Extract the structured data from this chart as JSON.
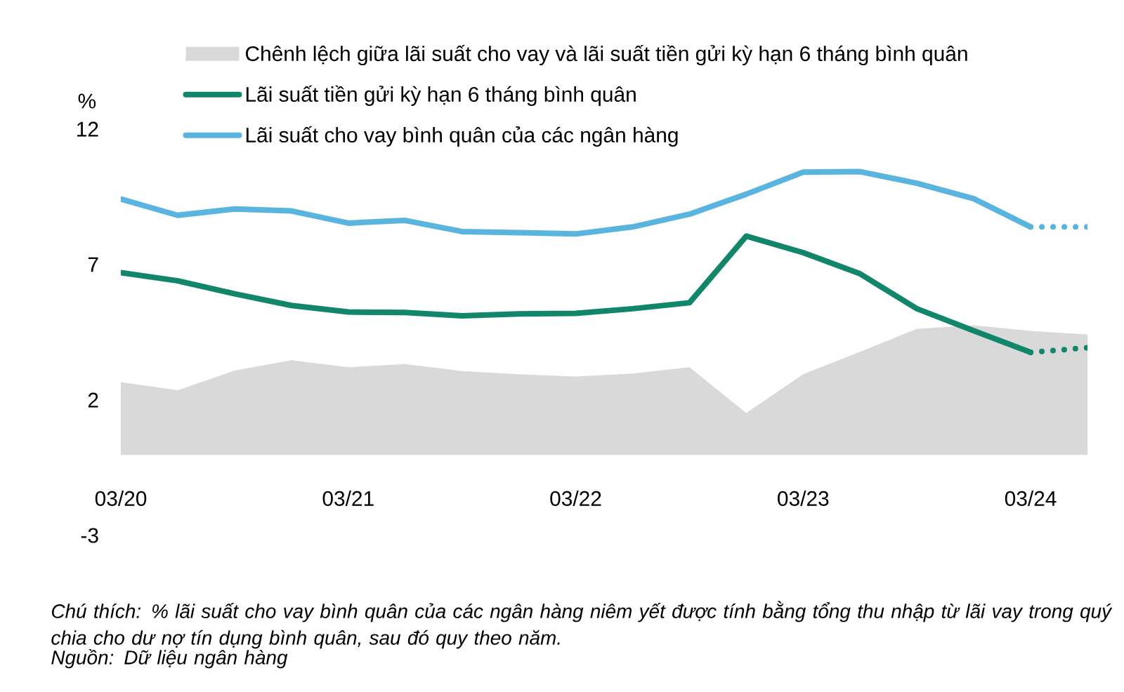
{
  "chart_data": {
    "type": "line",
    "ylabel": "%",
    "x": [
      "2020-03",
      "2020-06",
      "2020-09",
      "2020-12",
      "2021-03",
      "2021-06",
      "2021-09",
      "2021-12",
      "2022-03",
      "2022-06",
      "2022-09",
      "2022-12",
      "2023-03",
      "2023-06",
      "2023-09",
      "2023-12",
      "2024-03",
      "2024-06"
    ],
    "series": [
      {
        "name": "Chênh lệch giữa lãi suất cho vay và lãi suất tiền gửi kỳ hạn 6 tháng bình quân",
        "type": "area",
        "color": "#d9d9d9",
        "values": [
          2.66,
          2.36,
          3.09,
          3.47,
          3.21,
          3.33,
          3.07,
          2.95,
          2.87,
          2.98,
          3.21,
          1.52,
          2.95,
          3.78,
          4.63,
          4.76,
          4.55,
          4.42
        ]
      },
      {
        "name": "Lãi suất tiền gửi kỳ hạn 6 tháng bình quân",
        "color": "#12866a",
        "x": [
          "2020-03",
          "2020-06",
          "2020-09",
          "2020-12",
          "2021-03",
          "2021-06",
          "2021-09",
          "2021-12",
          "2022-03",
          "2022-06",
          "2022-09",
          "2022-12",
          "2023-03",
          "2023-06",
          "2023-09",
          "2023-12",
          "2024-03"
        ],
        "values": [
          6.7,
          6.4,
          5.92,
          5.49,
          5.25,
          5.23,
          5.11,
          5.18,
          5.2,
          5.37,
          5.59,
          8.05,
          7.44,
          6.66,
          5.37,
          4.56,
          3.76
        ]
      },
      {
        "name": "Lãi suất cho vay bình quân của các ngân hàng",
        "color": "#5ab4e0",
        "x": [
          "2020-03",
          "2020-06",
          "2020-09",
          "2020-12",
          "2021-03",
          "2021-06",
          "2021-09",
          "2021-12",
          "2022-03",
          "2022-06",
          "2022-09",
          "2022-12",
          "2023-03",
          "2023-06",
          "2023-09",
          "2023-12",
          "2024-03"
        ],
        "values": [
          9.42,
          8.82,
          9.05,
          8.98,
          8.53,
          8.63,
          8.22,
          8.18,
          8.13,
          8.39,
          8.86,
          9.6,
          10.41,
          10.43,
          10.0,
          9.43,
          8.39
        ]
      },
      {
        "color": "#12866a",
        "line_style": "dotted",
        "x": [
          "2024-03",
          "2024-06"
        ],
        "values": [
          3.76,
          3.93
        ]
      },
      {
        "color": "#5ab4e0",
        "line_style": "dotted",
        "x": [
          "2024-03",
          "2024-06"
        ],
        "values": [
          8.39,
          8.39
        ]
      }
    ],
    "xlim": [
      "2020-03",
      "2024-06"
    ],
    "xticks": [
      {
        "value": "2020-03",
        "label": "03/20"
      },
      {
        "value": "2021-03",
        "label": "03/21"
      },
      {
        "value": "2022-03",
        "label": "03/22"
      },
      {
        "value": "2023-03",
        "label": "03/23"
      },
      {
        "value": "2024-03",
        "label": "03/24"
      }
    ],
    "ylim": [
      -3,
      12
    ],
    "yticks": [
      -3,
      2,
      7,
      12
    ],
    "grid": false,
    "legend": "top",
    "marker": "none",
    "line_style": "solid",
    "annotations": [
      "Chú thích: % lãi suất cho vay bình quân của các ngân hàng niêm yết được tính bằng tổng thu nhập từ lãi vay trong quý chia cho dư nợ tín dụng bình quân, sau đó quy theo năm.",
      "Nguồn: Dữ liệu ngân hàng"
    ]
  }
}
